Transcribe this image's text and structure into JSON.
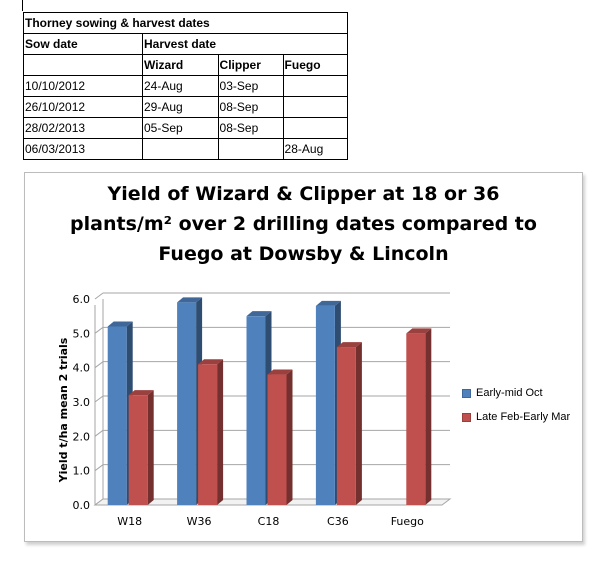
{
  "schedule": {
    "title": "Thorney sowing & harvest dates",
    "sow_header": "Sow date",
    "harvest_header": "Harvest date",
    "varieties": [
      "Wizard",
      "Clipper",
      "Fuego"
    ],
    "rows": [
      {
        "sow": "10/10/2012",
        "wizard": "24-Aug",
        "clipper": "03-Sep",
        "fuego": ""
      },
      {
        "sow": "26/10/2012",
        "wizard": "29-Aug",
        "clipper": "08-Sep",
        "fuego": ""
      },
      {
        "sow": "28/02/2013",
        "wizard": "05-Sep",
        "clipper": "08-Sep",
        "fuego": ""
      },
      {
        "sow": "06/03/2013",
        "wizard": "",
        "clipper": "",
        "fuego": "28-Aug"
      }
    ]
  },
  "chart_data": {
    "type": "bar",
    "title_lines": [
      "Yield of Wizard & Clipper at 18 or 36",
      "plants/m² over 2 drilling dates compared to",
      "Fuego at Dowsby & Lincoln"
    ],
    "ylabel": "Yield t/ha mean 2 trials",
    "xlabel": "",
    "ylim": [
      0,
      6
    ],
    "yticks": [
      "0.0",
      "1.0",
      "2.0",
      "3.0",
      "4.0",
      "5.0",
      "6.0"
    ],
    "grid": true,
    "legend_position": "right",
    "categories": [
      "W18",
      "W36",
      "C18",
      "C36",
      "Fuego"
    ],
    "series": [
      {
        "name": "Early-mid Oct",
        "color": "#4f81bd",
        "values": [
          5.2,
          5.9,
          5.5,
          5.8,
          null
        ]
      },
      {
        "name": "Late Feb-Early Mar",
        "color": "#c0504d",
        "values": [
          3.2,
          4.1,
          3.8,
          4.6,
          5.0
        ]
      }
    ]
  }
}
